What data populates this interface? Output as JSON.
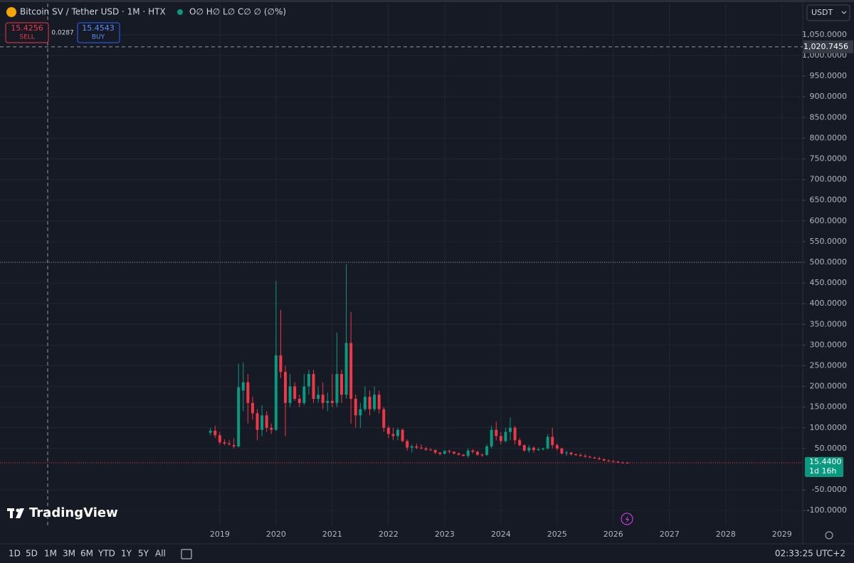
{
  "chart_data": {
    "type": "candlestick",
    "title": "Bitcoin SV / Tether USD · 1M · HTX",
    "ohlc_header": "O∅ H∅ L∅ C∅ ∅ (∅%)",
    "x": [
      "2018-11",
      "2018-12",
      "2019-01",
      "2019-02",
      "2019-03",
      "2019-04",
      "2019-05",
      "2019-06",
      "2019-07",
      "2019-08",
      "2019-09",
      "2019-10",
      "2019-11",
      "2019-12",
      "2020-01",
      "2020-02",
      "2020-03",
      "2020-04",
      "2020-05",
      "2020-06",
      "2020-07",
      "2020-08",
      "2020-09",
      "2020-10",
      "2020-11",
      "2020-12",
      "2021-01",
      "2021-02",
      "2021-03",
      "2021-04",
      "2021-05",
      "2021-06",
      "2021-07",
      "2021-08",
      "2021-09",
      "2021-10",
      "2021-11",
      "2021-12",
      "2022-01",
      "2022-02",
      "2022-03",
      "2022-04",
      "2022-05",
      "2022-06",
      "2022-07",
      "2022-08",
      "2022-09",
      "2022-10",
      "2022-11",
      "2022-12",
      "2023-01",
      "2023-02",
      "2023-03",
      "2023-04",
      "2023-05",
      "2023-06",
      "2023-07",
      "2023-08",
      "2023-09",
      "2023-10",
      "2023-11",
      "2023-12",
      "2024-01",
      "2024-02",
      "2024-03",
      "2024-04",
      "2024-05",
      "2024-06",
      "2024-07",
      "2024-08",
      "2024-09",
      "2024-10",
      "2024-11",
      "2024-12",
      "2025-01",
      "2025-02",
      "2025-03",
      "2025-04",
      "2025-05",
      "2025-06",
      "2025-07",
      "2025-08",
      "2025-09",
      "2025-10",
      "2025-11",
      "2025-12",
      "2026-01",
      "2026-02",
      "2026-03",
      "2026-04"
    ],
    "open": [
      88,
      93,
      82,
      65,
      62,
      58,
      55,
      190,
      210,
      160,
      135,
      95,
      130,
      100,
      95,
      275,
      235,
      160,
      200,
      170,
      160,
      200,
      230,
      170,
      180,
      160,
      165,
      160,
      230,
      180,
      305,
      170,
      130,
      145,
      175,
      145,
      180,
      145,
      100,
      85,
      80,
      95,
      68,
      52,
      55,
      52,
      50,
      47,
      46,
      40,
      37,
      44,
      42,
      38,
      35,
      32,
      45,
      42,
      35,
      34,
      55,
      95,
      80,
      68,
      90,
      100,
      70,
      58,
      45,
      52,
      46,
      48,
      50,
      78,
      58,
      50,
      38,
      40,
      36,
      34,
      32,
      30,
      28,
      26,
      24,
      21,
      19,
      18,
      16,
      15.5
    ],
    "high": [
      100,
      105,
      90,
      72,
      70,
      75,
      255,
      258,
      230,
      175,
      145,
      155,
      140,
      110,
      455,
      385,
      250,
      230,
      210,
      180,
      230,
      240,
      240,
      200,
      210,
      185,
      230,
      330,
      240,
      495,
      380,
      180,
      160,
      200,
      190,
      200,
      190,
      150,
      105,
      100,
      100,
      98,
      72,
      60,
      62,
      60,
      54,
      51,
      48,
      42,
      46,
      47,
      43,
      40,
      36,
      50,
      48,
      44,
      38,
      60,
      105,
      115,
      90,
      100,
      125,
      105,
      75,
      60,
      58,
      55,
      52,
      52,
      85,
      100,
      62,
      52,
      45,
      42,
      38,
      38,
      36,
      32,
      30,
      30,
      26,
      23,
      22,
      20,
      18,
      17
    ],
    "low": [
      82,
      75,
      60,
      58,
      57,
      50,
      52,
      140,
      110,
      120,
      70,
      80,
      90,
      85,
      92,
      220,
      80,
      150,
      165,
      150,
      155,
      180,
      160,
      160,
      145,
      140,
      150,
      150,
      160,
      170,
      110,
      100,
      100,
      140,
      130,
      140,
      135,
      90,
      75,
      70,
      70,
      65,
      45,
      40,
      48,
      48,
      44,
      45,
      36,
      33,
      36,
      38,
      35,
      33,
      31,
      27,
      38,
      32,
      30,
      33,
      50,
      70,
      60,
      64,
      70,
      60,
      55,
      42,
      40,
      40,
      44,
      45,
      47,
      50,
      45,
      35,
      32,
      33,
      32,
      30,
      28,
      27,
      25,
      22,
      19,
      18,
      17,
      15,
      14,
      14.8
    ],
    "close": [
      93,
      82,
      65,
      62,
      60,
      55,
      198,
      210,
      160,
      135,
      95,
      130,
      100,
      95,
      275,
      235,
      160,
      200,
      170,
      160,
      200,
      230,
      170,
      180,
      160,
      165,
      160,
      230,
      180,
      305,
      170,
      130,
      145,
      175,
      145,
      180,
      145,
      100,
      85,
      80,
      95,
      68,
      52,
      55,
      52,
      50,
      47,
      46,
      40,
      37,
      44,
      42,
      38,
      35,
      32,
      45,
      42,
      35,
      34,
      55,
      95,
      80,
      68,
      90,
      100,
      70,
      58,
      45,
      52,
      46,
      48,
      50,
      78,
      58,
      50,
      38,
      40,
      36,
      34,
      32,
      30,
      28,
      26,
      24,
      21,
      19,
      18,
      16,
      15.5,
      15.44
    ],
    "up_color": "#089981",
    "down_color": "#f23645",
    "ylim": [
      -137.5,
      1125.4
    ],
    "yticks": [
      {
        "value": -100,
        "label": "-100.0000"
      },
      {
        "value": -50,
        "label": "-50.0000"
      },
      {
        "value": 50,
        "label": "50.0000"
      },
      {
        "value": 100,
        "label": "100.0000"
      },
      {
        "value": 150,
        "label": "150.0000"
      },
      {
        "value": 200,
        "label": "200.0000"
      },
      {
        "value": 250,
        "label": "250.0000"
      },
      {
        "value": 300,
        "label": "300.0000"
      },
      {
        "value": 350,
        "label": "350.0000"
      },
      {
        "value": 400,
        "label": "400.0000"
      },
      {
        "value": 450,
        "label": "450.0000"
      },
      {
        "value": 500,
        "label": "500.0000"
      },
      {
        "value": 550,
        "label": "550.0000"
      },
      {
        "value": 600,
        "label": "600.0000"
      },
      {
        "value": 650,
        "label": "650.0000"
      },
      {
        "value": 700,
        "label": "700.0000"
      },
      {
        "value": 750,
        "label": "750.0000"
      },
      {
        "value": 800,
        "label": "800.0000"
      },
      {
        "value": 850,
        "label": "850.0000"
      },
      {
        "value": 900,
        "label": "900.0000"
      },
      {
        "value": 950,
        "label": "950.0000"
      },
      {
        "value": 1000,
        "label": "1,000.0000"
      },
      {
        "value": 1050,
        "label": "1,050.0000"
      }
    ],
    "xlim": [
      2015.09,
      2029.37
    ],
    "xticks": [
      2019,
      2020,
      2021,
      2022,
      2023,
      2024,
      2025,
      2026,
      2027,
      2028,
      2029
    ],
    "grid": true,
    "hline": 500,
    "crosshair": {
      "value": 1020.7456,
      "label": "1,020.7456"
    },
    "last_price": {
      "value": 15.44,
      "label": "15.4400"
    },
    "countdown": "1d 16h"
  },
  "ui": {
    "sell_price": "15.4256",
    "sell_label": "SELL",
    "spread": "0.0287",
    "buy_price": "15.4543",
    "buy_label": "BUY",
    "currency": "USDT",
    "logo": "TradingView",
    "timeframes": [
      "1D",
      "5D",
      "1M",
      "3M",
      "6M",
      "YTD",
      "1Y",
      "5Y",
      "All"
    ],
    "clock": "02:33:25 UTC+2"
  }
}
